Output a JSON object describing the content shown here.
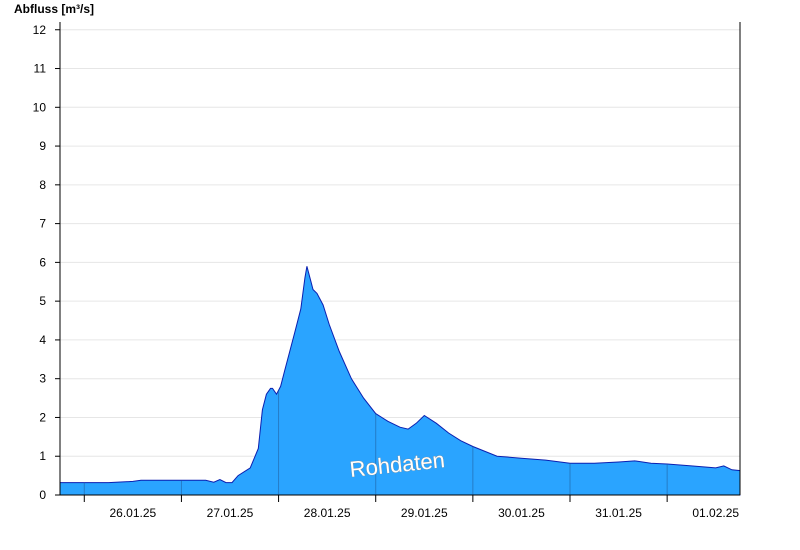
{
  "chart_data": {
    "type": "area",
    "ylabel": "Abfluss [m³/s]",
    "watermark": "Rohdaten",
    "y_ticks": [
      0,
      1,
      2,
      3,
      4,
      5,
      6,
      7,
      8,
      9,
      10,
      11,
      12
    ],
    "ylim": [
      0,
      12.2
    ],
    "x_range": [
      "2025-01-25T18:00",
      "2025-02-01T18:00"
    ],
    "x_tick_labels": [
      "26.01.25",
      "27.01.25",
      "28.01.25",
      "29.01.25",
      "30.01.25",
      "31.01.25",
      "01.02.25"
    ],
    "day_boundaries": [
      "2025-01-26T00:00",
      "2025-01-27T00:00",
      "2025-01-28T00:00",
      "2025-01-29T00:00",
      "2025-01-30T00:00",
      "2025-01-31T00:00",
      "2025-02-01T00:00"
    ],
    "grid": true,
    "color": "#2aa4ff",
    "series": [
      {
        "x": [
          "2025-01-25T18:00",
          "2025-01-26T06:00",
          "2025-01-26T12:00",
          "2025-01-26T14:00",
          "2025-01-27T06:00",
          "2025-01-27T08:00",
          "2025-01-27T09:30",
          "2025-01-27T11:00",
          "2025-01-27T12:30",
          "2025-01-27T14:00",
          "2025-01-27T17:00",
          "2025-01-27T19:00",
          "2025-01-27T20:00",
          "2025-01-27T21:00",
          "2025-01-27T22:00",
          "2025-01-27T22:30",
          "2025-01-27T23:30",
          "2025-01-28T00:30",
          "2025-01-28T01:30",
          "2025-01-28T02:30",
          "2025-01-28T04:00",
          "2025-01-28T05:30",
          "2025-01-28T06:30",
          "2025-01-28T07:00",
          "2025-01-28T08:00",
          "2025-01-28T08:30",
          "2025-01-28T09:30",
          "2025-01-28T11:00",
          "2025-01-28T12:30",
          "2025-01-28T15:00",
          "2025-01-28T18:00",
          "2025-01-28T21:00",
          "2025-01-29T00:00",
          "2025-01-29T03:00",
          "2025-01-29T06:00",
          "2025-01-29T08:00",
          "2025-01-29T10:00",
          "2025-01-29T12:00",
          "2025-01-29T15:00",
          "2025-01-29T18:00",
          "2025-01-29T21:00",
          "2025-01-30T00:00",
          "2025-01-30T06:00",
          "2025-01-30T12:00",
          "2025-01-30T18:00",
          "2025-01-31T00:00",
          "2025-01-31T06:00",
          "2025-01-31T12:00",
          "2025-01-31T16:00",
          "2025-01-31T20:00",
          "2025-02-01T00:00",
          "2025-02-01T06:00",
          "2025-02-01T12:00",
          "2025-02-01T14:00",
          "2025-02-01T16:00",
          "2025-02-01T18:00"
        ],
        "y": [
          0.32,
          0.32,
          0.35,
          0.38,
          0.38,
          0.33,
          0.4,
          0.32,
          0.32,
          0.5,
          0.7,
          1.2,
          2.2,
          2.6,
          2.75,
          2.75,
          2.6,
          2.8,
          3.2,
          3.6,
          4.2,
          4.8,
          5.6,
          5.9,
          5.5,
          5.3,
          5.2,
          4.9,
          4.4,
          3.7,
          3.0,
          2.5,
          2.1,
          1.9,
          1.75,
          1.7,
          1.85,
          2.05,
          1.85,
          1.6,
          1.4,
          1.25,
          1.0,
          0.95,
          0.9,
          0.82,
          0.82,
          0.85,
          0.88,
          0.82,
          0.8,
          0.75,
          0.7,
          0.75,
          0.65,
          0.63
        ]
      }
    ]
  }
}
